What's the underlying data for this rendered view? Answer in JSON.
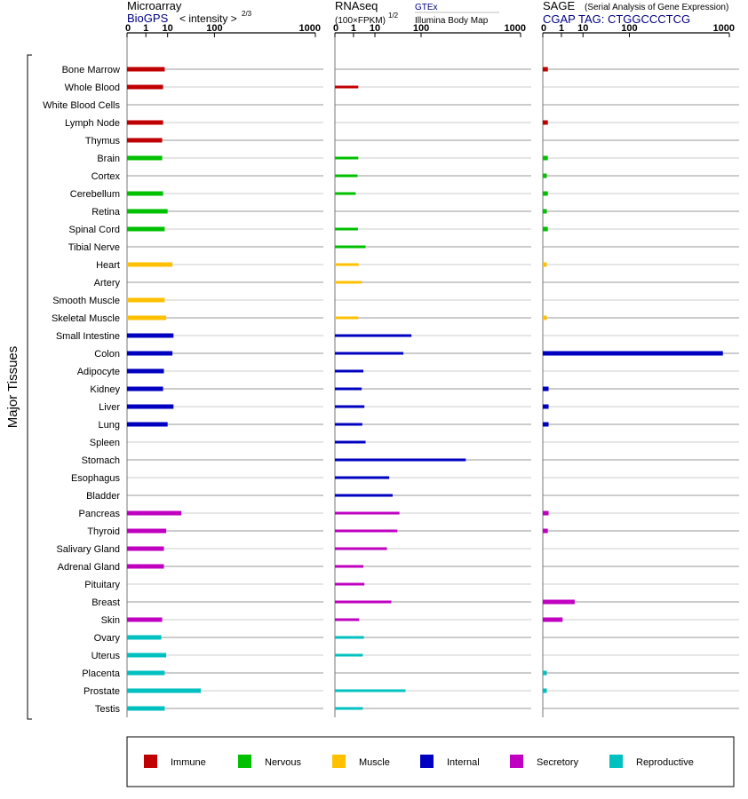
{
  "colors": {
    "Immune": "#c00000",
    "Nervous": "#00c000",
    "Muscle": "#ffc000",
    "Internal": "#0000c0",
    "Secretory": "#c000c0",
    "Reproductive": "#00c0c0",
    "link": "#000080"
  },
  "side_label": "Major Tissues",
  "tick_labels": [
    "0",
    "1",
    "10",
    "100",
    "1000"
  ],
  "panels": [
    {
      "id": "microarray",
      "title": "Microarray",
      "source": "BioGPS",
      "note": "< intensity >",
      "note_exp": "2/3"
    },
    {
      "id": "rnaseq",
      "title": "RNAseq",
      "note": "(100×FPKM)",
      "note_exp": "1/2",
      "source_top": "GTEx",
      "source_bottom": "Illumina Body Map"
    },
    {
      "id": "sage",
      "title": "SAGE",
      "subtitle": "(Serial Analysis of Gene Expression)",
      "source": "CGAP TAG: CTGGCCCTCG"
    }
  ],
  "legend": [
    {
      "label": "Immune",
      "color": "#c00000"
    },
    {
      "label": "Nervous",
      "color": "#00c000"
    },
    {
      "label": "Muscle",
      "color": "#ffc000"
    },
    {
      "label": "Internal",
      "color": "#0000c0"
    },
    {
      "label": "Secretory",
      "color": "#c000c0"
    },
    {
      "label": "Reproductive",
      "color": "#00c0c0"
    }
  ],
  "chart_data": {
    "type": "bar",
    "orientation": "horizontal",
    "x_scale": "power",
    "xlim": [
      0,
      1000
    ],
    "categories": [
      "Bone Marrow",
      "Whole Blood",
      "White Blood Cells",
      "Lymph Node",
      "Thymus",
      "Brain",
      "Cortex",
      "Cerebellum",
      "Retina",
      "Spinal Cord",
      "Tibial Nerve",
      "Heart",
      "Artery",
      "Smooth Muscle",
      "Skeletal Muscle",
      "Small Intestine",
      "Colon",
      "Adipocyte",
      "Kidney",
      "Liver",
      "Lung",
      "Spleen",
      "Stomach",
      "Esophagus",
      "Bladder",
      "Pancreas",
      "Thyroid",
      "Salivary Gland",
      "Adrenal Gland",
      "Pituitary",
      "Breast",
      "Skin",
      "Ovary",
      "Uterus",
      "Placenta",
      "Prostate",
      "Testis"
    ],
    "tissue_group": [
      "Immune",
      "Immune",
      "Immune",
      "Immune",
      "Immune",
      "Nervous",
      "Nervous",
      "Nervous",
      "Nervous",
      "Nervous",
      "Nervous",
      "Muscle",
      "Muscle",
      "Muscle",
      "Muscle",
      "Internal",
      "Internal",
      "Internal",
      "Internal",
      "Internal",
      "Internal",
      "Internal",
      "Internal",
      "Internal",
      "Internal",
      "Secretory",
      "Secretory",
      "Secretory",
      "Secretory",
      "Secretory",
      "Secretory",
      "Secretory",
      "Reproductive",
      "Reproductive",
      "Reproductive",
      "Reproductive",
      "Reproductive"
    ],
    "series": [
      {
        "name": "Microarray",
        "values": [
          8,
          7,
          null,
          7,
          6.5,
          6.5,
          null,
          7,
          10,
          8,
          null,
          14,
          null,
          8,
          9,
          15,
          14,
          7.5,
          7,
          15,
          10,
          null,
          null,
          null,
          null,
          24,
          9,
          7.5,
          7.5,
          null,
          null,
          6.5,
          6,
          9,
          8,
          60,
          8
        ]
      },
      {
        "name": "RNAseq",
        "values": [
          null,
          2,
          null,
          null,
          null,
          2,
          1.8,
          1.4,
          null,
          1.9,
          4.5,
          2.1,
          3,
          null,
          2,
          70,
          50,
          3.6,
          3,
          4,
          3.2,
          4.5,
          350,
          25,
          30,
          42,
          38,
          22,
          3.6,
          4,
          28,
          2.2,
          3.8,
          3.4,
          null,
          55,
          3.4
        ]
      },
      {
        "name": "SAGE",
        "values": [
          0.02,
          null,
          null,
          0.02,
          null,
          0.02,
          0.01,
          0.02,
          0.01,
          0.02,
          null,
          0.01,
          null,
          null,
          0.01,
          null,
          900,
          null,
          0.03,
          0.03,
          0.03,
          null,
          null,
          null,
          null,
          0.03,
          0.02,
          null,
          null,
          null,
          5,
          1.2,
          null,
          null,
          0.01,
          0.01,
          null
        ]
      }
    ]
  }
}
